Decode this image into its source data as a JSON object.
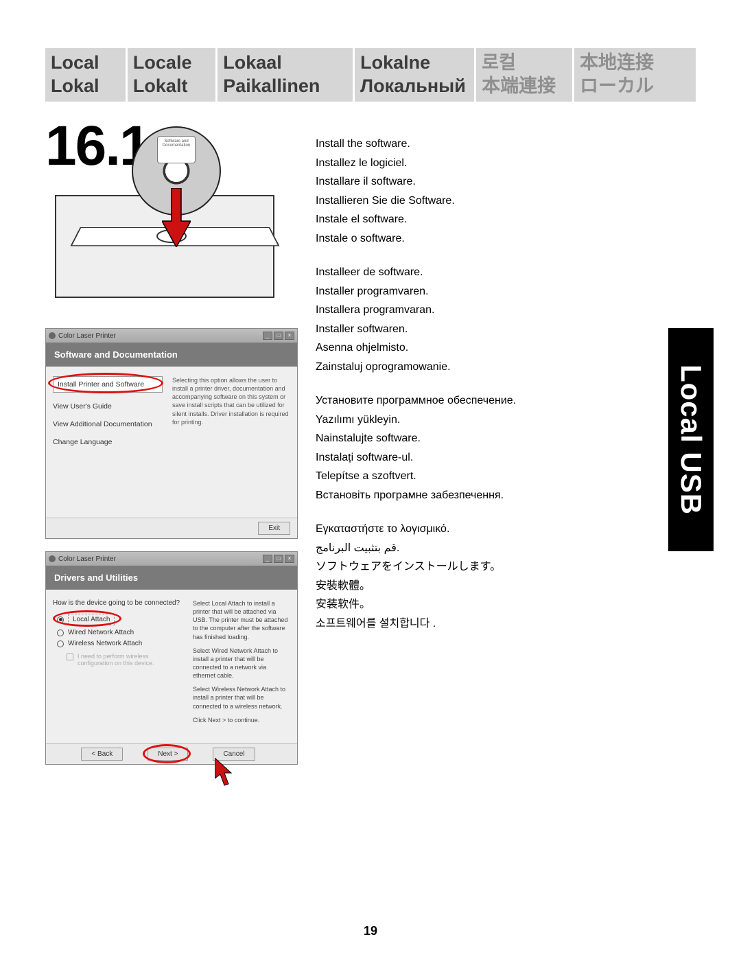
{
  "banner": {
    "c1a": "Local",
    "c1b": "Lokal",
    "c2a": "Locale",
    "c2b": "Lokalt",
    "c3a": "Lokaal",
    "c3b": "Paikallinen",
    "c4a": "Lokalne",
    "c4b": "Локальный",
    "c5a": "로컬",
    "c5b": "本端連接",
    "c6a": "本地连接",
    "c6b": "ローカル"
  },
  "step": "16.1",
  "cd_label": "Software and Documentation",
  "win1": {
    "title": "Color Laser Printer",
    "header": "Software and Documentation",
    "opt1": "Install Printer and Software",
    "opt2": "View User's Guide",
    "opt3": "View Additional Documentation",
    "opt4": "Change Language",
    "desc": "Selecting this option allows the user to install a printer driver, documentation and accompanying software on this system or save install scripts that can be utilized for silent installs. Driver installation is required for printing.",
    "exit": "Exit"
  },
  "win2": {
    "title": "Color Laser Printer",
    "header": "Drivers and Utilities",
    "question": "How is the device going to be connected?",
    "r1": "Local Attach",
    "r2": "Wired Network Attach",
    "r3": "Wireless Network Attach",
    "chk": "I need to perform wireless configuration on this device.",
    "p1": "Select Local Attach to install a printer that will be attached via USB. The printer must be attached to the computer after the software has finished loading.",
    "p2": "Select Wired Network Attach to install a printer that will be connected to a network via ethernet cable.",
    "p3": "Select Wireless Network Attach to install a printer that will be connected to a wireless network.",
    "p4": "Click Next > to continue.",
    "back": "< Back",
    "next": "Next >",
    "cancel": "Cancel"
  },
  "instructions": {
    "block1": [
      "Install the software.",
      "Installez le logiciel.",
      "Installare il software.",
      "Installieren Sie die Software.",
      "Instale el software.",
      "Instale o software."
    ],
    "block2": [
      "Installeer de software.",
      "Installer programvaren.",
      "Installera programvaran.",
      "Installer softwaren.",
      "Asenna ohjelmisto.",
      "Zainstaluj oprogramowanie."
    ],
    "block3": [
      "Установите программное обеспечение.",
      "Yazılımı yükleyin.",
      "Nainstalujte software.",
      "Instalați software-ul.",
      "Telepítse a szoftvert.",
      "Встановіть програмне забезпечення."
    ],
    "block4": [
      "Εγκαταστήστε το λογισμικό.",
      "قم بتثبيت البرنامج.",
      "ソフトウェアをインストールします。",
      "安裝軟體。",
      "安装软件。",
      "소프트웨어를 설치합니다 ."
    ]
  },
  "side_tab": "Local USB",
  "page_number": "19",
  "colors": {
    "banner_bg": "#d6d6d6",
    "accent_red": "#d11",
    "side_bg": "#000000"
  }
}
